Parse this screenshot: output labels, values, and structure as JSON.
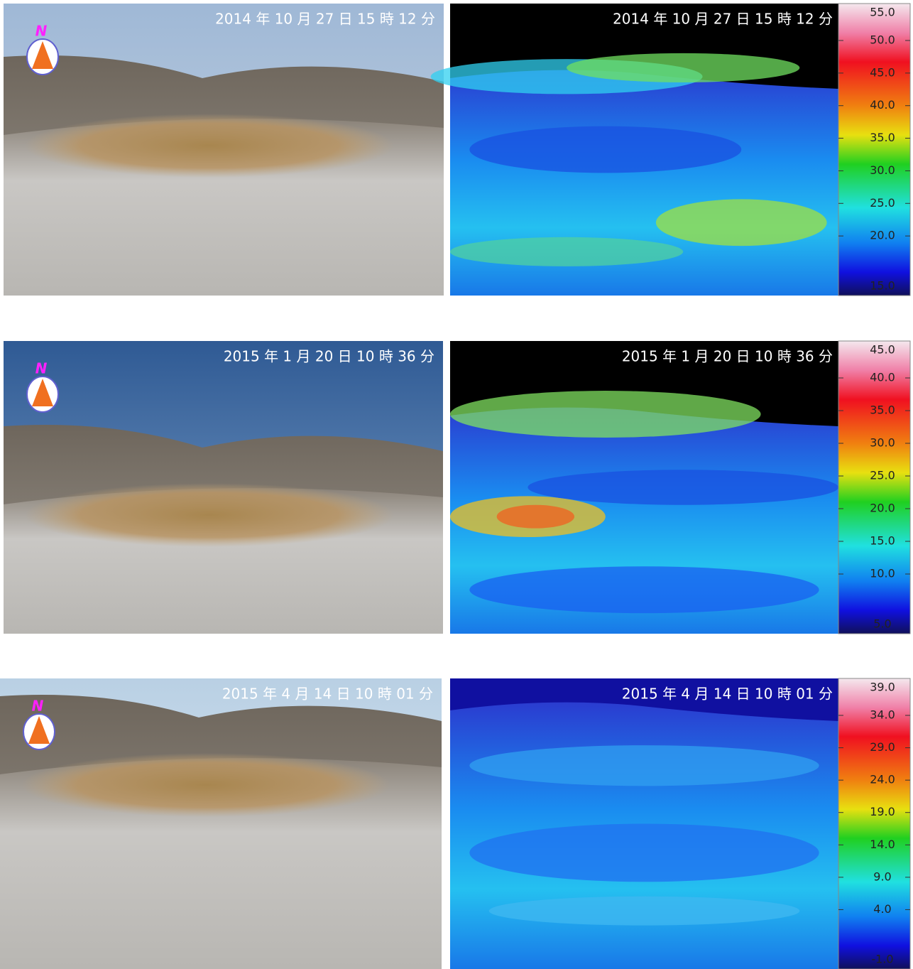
{
  "rows": [
    {
      "photo": {
        "timestamp": "2014 年 10 月 27 日 15 時 12 分",
        "compass": "N"
      },
      "thermal": {
        "timestamp": "2014 年 10 月 27 日 15 時 12 分",
        "scale": [
          "55.0",
          "50.0",
          "45.0",
          "40.0",
          "35.0",
          "30.0",
          "25.0",
          "20.0",
          "15.0"
        ]
      }
    },
    {
      "photo": {
        "timestamp": "2015 年 1 月 20 日 10 時 36 分",
        "compass": "N"
      },
      "thermal": {
        "timestamp": "2015 年 1 月 20 日 10 時 36 分",
        "scale": [
          "45.0",
          "40.0",
          "35.0",
          "30.0",
          "25.0",
          "20.0",
          "15.0",
          "10.0",
          "5.0"
        ]
      }
    },
    {
      "photo": {
        "timestamp": "2015 年 4 月 14 日 10 時 01 分",
        "compass": "N"
      },
      "thermal": {
        "timestamp": "2015 年 4 月 14 日 10 時 01 分",
        "scale": [
          "39.0",
          "34.0",
          "29.0",
          "24.0",
          "19.0",
          "14.0",
          "9.0",
          "4.0",
          "-1.0"
        ]
      }
    }
  ]
}
